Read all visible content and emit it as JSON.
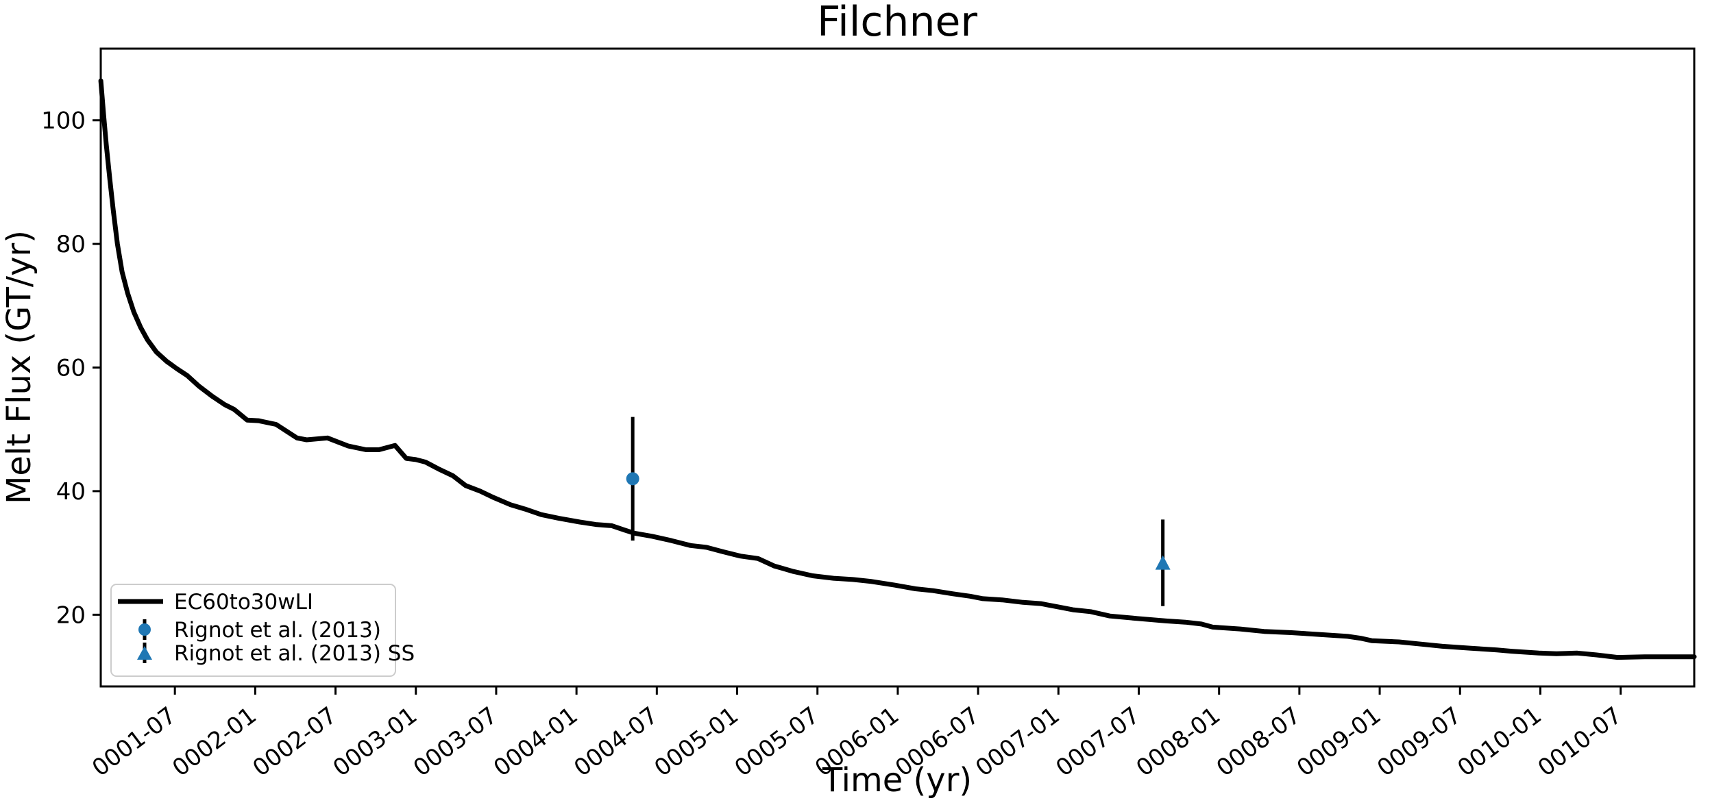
{
  "figure": {
    "title": "Filchner",
    "xlabel": "Time (yr)",
    "ylabel": "Melt Flux (GT/yr)",
    "background": "#ffffff",
    "line_color": "#000000",
    "accent_blue": "#1f77b4",
    "legend_border": "#cccccc"
  },
  "legend": {
    "entries": [
      {
        "label": "EC60to30wLI",
        "marker": "line",
        "color": "#000000"
      },
      {
        "label": "Rignot et al. (2013)",
        "marker": "circle",
        "color": "#1f77b4"
      },
      {
        "label": "Rignot et al. (2013) SS",
        "marker": "triangle",
        "color": "#1f77b4"
      }
    ]
  },
  "chart_data": {
    "type": "line",
    "title": "Filchner",
    "xlabel": "Time (yr)",
    "ylabel": "Melt Flux (GT/yr)",
    "grid": false,
    "legend_position": "lower left",
    "x_axis": {
      "unit": "year-month (decimal years, 0001-01 = 1.0)",
      "range": [
        1.0385,
        10.958
      ],
      "tick_positions": [
        1.5,
        2.0,
        2.5,
        3.0,
        3.5,
        4.0,
        4.5,
        5.0,
        5.5,
        6.0,
        6.5,
        7.0,
        7.5,
        8.0,
        8.5,
        9.0,
        9.5,
        10.0,
        10.5
      ],
      "tick_labels": [
        "0001-07",
        "0002-01",
        "0002-07",
        "0003-01",
        "0003-07",
        "0004-01",
        "0004-07",
        "0005-01",
        "0005-07",
        "0006-01",
        "0006-07",
        "0007-01",
        "0007-07",
        "0008-01",
        "0008-07",
        "0009-01",
        "0009-07",
        "0010-01",
        "0010-07"
      ],
      "tick_rotation_deg": 37
    },
    "y_axis": {
      "range": [
        8.4,
        111.6
      ],
      "tick_positions": [
        20,
        40,
        60,
        80,
        100
      ],
      "tick_labels": [
        "20",
        "40",
        "60",
        "80",
        "100"
      ]
    },
    "series": [
      {
        "name": "EC60to30wLI",
        "type": "line",
        "color": "#000000",
        "linewidth": 7,
        "points": [
          [
            1.039,
            106.4
          ],
          [
            1.056,
            101.0
          ],
          [
            1.073,
            96.0
          ],
          [
            1.095,
            90.5
          ],
          [
            1.116,
            85.5
          ],
          [
            1.142,
            80.0
          ],
          [
            1.171,
            75.5
          ],
          [
            1.206,
            72.0
          ],
          [
            1.244,
            69.0
          ],
          [
            1.287,
            66.5
          ],
          [
            1.329,
            64.5
          ],
          [
            1.385,
            62.5
          ],
          [
            1.449,
            61.0
          ],
          [
            1.513,
            59.8
          ],
          [
            1.577,
            58.7
          ],
          [
            1.649,
            57.0
          ],
          [
            1.735,
            55.3
          ],
          [
            1.81,
            54.0
          ],
          [
            1.87,
            53.2
          ],
          [
            1.95,
            51.5
          ],
          [
            2.02,
            51.4
          ],
          [
            2.13,
            50.8
          ],
          [
            2.26,
            48.6
          ],
          [
            2.32,
            48.3
          ],
          [
            2.45,
            48.6
          ],
          [
            2.58,
            47.3
          ],
          [
            2.69,
            46.7
          ],
          [
            2.77,
            46.7
          ],
          [
            2.87,
            47.4
          ],
          [
            2.94,
            45.3
          ],
          [
            3.0,
            45.1
          ],
          [
            3.06,
            44.7
          ],
          [
            3.14,
            43.6
          ],
          [
            3.23,
            42.5
          ],
          [
            3.31,
            40.9
          ],
          [
            3.4,
            40.0
          ],
          [
            3.48,
            39.0
          ],
          [
            3.59,
            37.8
          ],
          [
            3.68,
            37.1
          ],
          [
            3.78,
            36.2
          ],
          [
            3.89,
            35.6
          ],
          [
            4.02,
            35.0
          ],
          [
            4.12,
            34.6
          ],
          [
            4.22,
            34.4
          ],
          [
            4.3,
            33.7
          ],
          [
            4.36,
            33.2
          ],
          [
            4.47,
            32.7
          ],
          [
            4.59,
            32.0
          ],
          [
            4.71,
            31.2
          ],
          [
            4.81,
            30.9
          ],
          [
            4.91,
            30.2
          ],
          [
            5.02,
            29.5
          ],
          [
            5.13,
            29.1
          ],
          [
            5.23,
            27.9
          ],
          [
            5.35,
            27.0
          ],
          [
            5.47,
            26.3
          ],
          [
            5.6,
            25.9
          ],
          [
            5.72,
            25.7
          ],
          [
            5.83,
            25.4
          ],
          [
            5.98,
            24.8
          ],
          [
            6.11,
            24.2
          ],
          [
            6.22,
            23.9
          ],
          [
            6.34,
            23.4
          ],
          [
            6.45,
            23.0
          ],
          [
            6.53,
            22.6
          ],
          [
            6.65,
            22.4
          ],
          [
            6.78,
            22.0
          ],
          [
            6.89,
            21.8
          ],
          [
            6.99,
            21.3
          ],
          [
            7.09,
            20.8
          ],
          [
            7.2,
            20.5
          ],
          [
            7.32,
            19.8
          ],
          [
            7.49,
            19.4
          ],
          [
            7.67,
            19.0
          ],
          [
            7.79,
            18.8
          ],
          [
            7.89,
            18.5
          ],
          [
            7.96,
            18.0
          ],
          [
            8.13,
            17.7
          ],
          [
            8.28,
            17.3
          ],
          [
            8.45,
            17.1
          ],
          [
            8.63,
            16.8
          ],
          [
            8.8,
            16.5
          ],
          [
            8.88,
            16.2
          ],
          [
            8.95,
            15.8
          ],
          [
            9.12,
            15.6
          ],
          [
            9.24,
            15.3
          ],
          [
            9.39,
            14.9
          ],
          [
            9.56,
            14.6
          ],
          [
            9.73,
            14.3
          ],
          [
            9.82,
            14.1
          ],
          [
            9.99,
            13.8
          ],
          [
            10.1,
            13.7
          ],
          [
            10.23,
            13.8
          ],
          [
            10.35,
            13.5
          ],
          [
            10.48,
            13.1
          ],
          [
            10.65,
            13.2
          ],
          [
            10.82,
            13.2
          ],
          [
            10.958,
            13.2
          ]
        ]
      }
    ],
    "observations": [
      {
        "name": "Rignot et al. (2013)",
        "marker": "circle",
        "color": "#1f77b4",
        "t": 4.35,
        "t_label": "0004-05",
        "value": 42.0,
        "yerr": 10.0
      },
      {
        "name": "Rignot et al. (2013) SS",
        "marker": "triangle",
        "color": "#1f77b4",
        "t": 7.65,
        "t_label": "0007-09",
        "value": 28.4,
        "yerr": 7.0
      }
    ]
  }
}
